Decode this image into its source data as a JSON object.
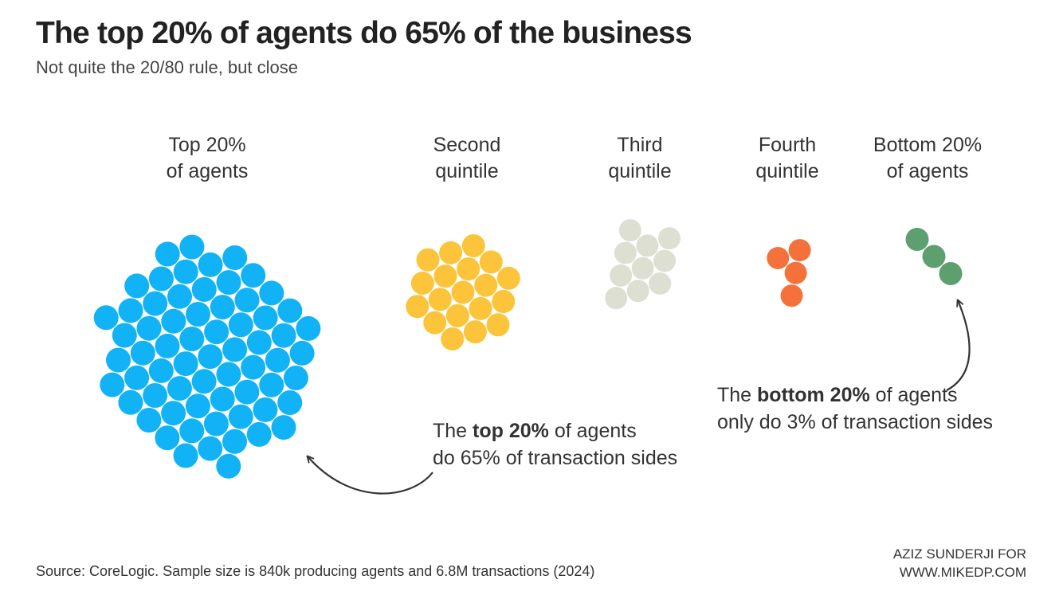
{
  "header": {
    "title": "The top 20% of agents do 65% of the business",
    "subtitle": "Not quite the 20/80 rule, but close"
  },
  "chart_data": {
    "type": "packed-dots",
    "title": "The top 20% of agents do 65% of the business",
    "subtitle": "Not quite the 20/80 rule, but close",
    "unit": "each dot represents roughly 1% of transaction sides",
    "categories": [
      "Top 20% of agents",
      "Second quintile",
      "Third quintile",
      "Fourth quintile",
      "Bottom 20% of agents"
    ],
    "values": [
      65,
      19,
      10,
      4,
      3
    ],
    "groups": [
      {
        "name": "top",
        "label_lines": [
          "Top 20%",
          "of agents"
        ],
        "value": 65,
        "color": "#11b2f6"
      },
      {
        "name": "second",
        "label_lines": [
          "Second",
          "quintile"
        ],
        "value": 19,
        "color": "#fcc43b"
      },
      {
        "name": "third",
        "label_lines": [
          "Third",
          "quintile"
        ],
        "value": 10,
        "color": "#dddfd2"
      },
      {
        "name": "fourth",
        "label_lines": [
          "Fourth",
          "quintile"
        ],
        "value": 4,
        "color": "#f5713c"
      },
      {
        "name": "bottom",
        "label_lines": [
          "Bottom 20%",
          "of agents"
        ],
        "value": 3,
        "color": "#5d9f6e"
      }
    ],
    "annotations": [
      {
        "pre": "The ",
        "bold": "top 20%",
        "post": " of agents",
        "line2": "do 65% of transaction sides"
      },
      {
        "pre": "The ",
        "bold": "bottom 20%",
        "post": " of agents",
        "line2": "only do 3% of transaction sides"
      }
    ]
  },
  "footer": {
    "source": "Source: CoreLogic. Sample size is 840k producing agents and 6.8M transactions (2024)",
    "credit_line1": "AZIZ SUNDERJI FOR",
    "credit_line2": "WWW.MIKEDP.COM"
  }
}
